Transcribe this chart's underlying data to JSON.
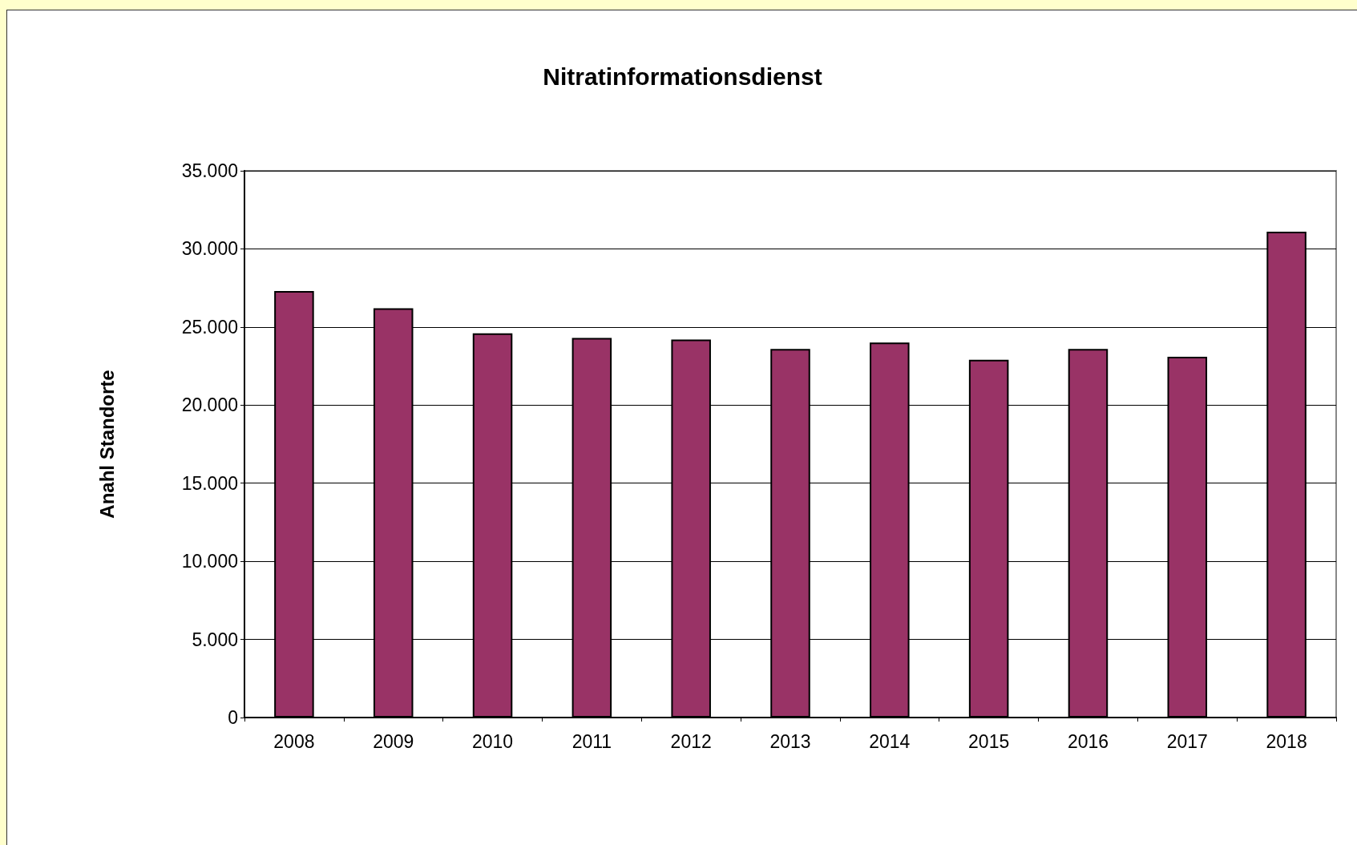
{
  "chart_data": {
    "type": "bar",
    "title": "Nitratinformationsdienst",
    "ylabel": "Anahl Standorte",
    "categories": [
      "2008",
      "2009",
      "2010",
      "2011",
      "2012",
      "2013",
      "2014",
      "2015",
      "2016",
      "2017",
      "2018"
    ],
    "values": [
      27300,
      26200,
      24600,
      24300,
      24200,
      23600,
      24000,
      22900,
      23600,
      23100,
      31100
    ],
    "color": "#993366",
    "ylim": [
      0,
      35000
    ],
    "yticks": [
      {
        "value": 0,
        "label": "0"
      },
      {
        "value": 5000,
        "label": "5.000"
      },
      {
        "value": 10000,
        "label": "10.000"
      },
      {
        "value": 15000,
        "label": "15.000"
      },
      {
        "value": 20000,
        "label": "20.000"
      },
      {
        "value": 25000,
        "label": "25.000"
      },
      {
        "value": 30000,
        "label": "30.000"
      },
      {
        "value": 35000,
        "label": "35.000"
      }
    ],
    "grid": "y"
  }
}
